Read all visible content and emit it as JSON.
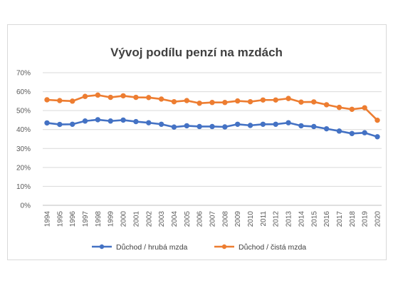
{
  "chart_data": {
    "type": "line",
    "title": "Vývoj podílu penzí na mzdách",
    "xlabel": "",
    "ylabel": "",
    "ylim": [
      0,
      70
    ],
    "y_ticks": [
      "0%",
      "10%",
      "20%",
      "30%",
      "40%",
      "50%",
      "60%",
      "70%"
    ],
    "grid": true,
    "legend_position": "bottom",
    "categories": [
      "1994",
      "1995",
      "1996",
      "1997",
      "1998",
      "1999",
      "2000",
      "2001",
      "2002",
      "2003",
      "2004",
      "2005",
      "2006",
      "2007",
      "2008",
      "2009",
      "2010",
      "2011",
      "2012",
      "2013",
      "2014",
      "2015",
      "2016",
      "2017",
      "2018",
      "2019",
      "2020"
    ],
    "series": [
      {
        "name": "Důchod / hrubá mzda",
        "color": "#4472c4",
        "values": [
          43.5,
          42.7,
          42.8,
          44.5,
          45.2,
          44.5,
          45.0,
          44.2,
          43.6,
          42.8,
          41.3,
          42.0,
          41.6,
          41.6,
          41.4,
          42.8,
          42.2,
          42.8,
          42.8,
          43.6,
          42.0,
          41.6,
          40.4,
          39.2,
          37.9,
          38.3,
          36.2
        ]
      },
      {
        "name": "Důchod / čistá mzda",
        "color": "#ed7d31",
        "values": [
          55.7,
          55.3,
          55.0,
          57.5,
          58.2,
          57.0,
          57.8,
          57.0,
          56.9,
          56.1,
          54.7,
          55.3,
          53.9,
          54.3,
          54.3,
          55.1,
          54.7,
          55.6,
          55.6,
          56.4,
          54.5,
          54.6,
          53.1,
          51.7,
          50.7,
          51.5,
          44.9
        ]
      }
    ]
  }
}
